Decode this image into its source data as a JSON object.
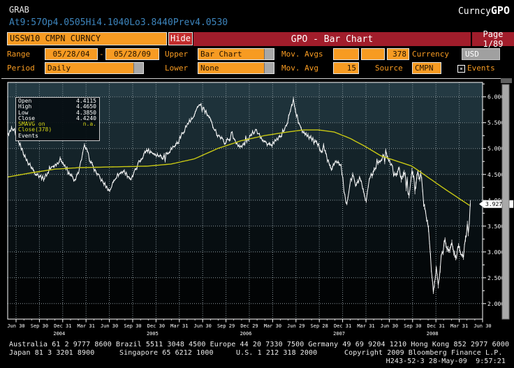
{
  "header": {
    "app_label": "GRAB",
    "function_name": "Curncy",
    "function_code": "GPO",
    "quote": {
      "at_label": "At",
      "at_value": "9:57",
      "op_label": "Op",
      "op_value": "4.0505",
      "hi_label": "Hi",
      "hi_value": "4.1040",
      "lo_label": "Lo",
      "lo_value": "3.8440",
      "prev_label": "Prev",
      "prev_value": "4.0530"
    }
  },
  "titlebar": {
    "security": "USSW10 CMPN CURNCY",
    "hide_label": "Hide",
    "title": "GPO - Bar Chart",
    "page": "Page 1/89"
  },
  "controls": {
    "range_label": "Range",
    "range_start": "05/28/04",
    "range_separator": "-",
    "range_end": "05/28/09",
    "upper_label": "Upper",
    "upper_value": "Bar Chart",
    "mov_avgs_label": "Mov. Avgs",
    "mov_avgs_1": "",
    "mov_avgs_2": "",
    "mov_avgs_3": "378",
    "currency_label": "Currency",
    "currency_value": "USD",
    "period_label": "Period",
    "period_value": "Daily",
    "lower_label": "Lower",
    "lower_value": "None",
    "mov_avg_label": "Mov. Avg",
    "mov_avg_value": "15",
    "source_label": "Source",
    "source_value": "CMPN",
    "events_label": "Events"
  },
  "legend": {
    "rows": [
      {
        "label": "Open",
        "value": "4.4115"
      },
      {
        "label": "High",
        "value": "4.4650"
      },
      {
        "label": "Low",
        "value": "4.3850"
      },
      {
        "label": "Close",
        "value": "4.4240"
      }
    ],
    "smavg_label": "SMAVG on Close(378)",
    "smavg_value": "n.a.",
    "events_label": "Events"
  },
  "chart_data": {
    "type": "line",
    "title": "GPO - Bar Chart (USSW10 CMPN CURNCY, daily bars with 378-period SMAVG)",
    "xlabel": "",
    "ylabel": "",
    "ylim": [
      1.7,
      6.28
    ],
    "grid": true,
    "legend_position": "top-left",
    "last_price": 3.927,
    "last_price_label": "3.9270",
    "y_axis": {
      "values": [
        6.0,
        5.5,
        5.0,
        4.5,
        4.0,
        3.5,
        3.0,
        2.5,
        2.0
      ],
      "labels": [
        "6.0000",
        "5.5000",
        "5.0000",
        "4.5000",
        "4.0000",
        "3.5000",
        "3.0000",
        "2.5000",
        "2.0000"
      ],
      "minor_tick_step": 0.25
    },
    "x_axis": {
      "unit": "months since 2004-05-28",
      "months_total": 61.08,
      "first_tick_month": 1.08,
      "tick_step_months": 3,
      "tick_labels": [
        "Jun 30",
        "Sep 30",
        "Dec 31",
        "Mar 31",
        "Jun 30",
        "Sep 30",
        "Dec 30",
        "Mar 31",
        "Jun 30",
        "Sep 29",
        "Dec 29",
        "Mar 30",
        "Jun 29",
        "Sep 28",
        "Dec 31",
        "Mar 31",
        "Jun 30",
        "Sep 30",
        "Dec 31",
        "Mar 31",
        "Jun 30"
      ],
      "years": [
        {
          "label": "2004",
          "tick": 2
        },
        {
          "label": "2005",
          "tick": 6
        },
        {
          "label": "2006",
          "tick": 10
        },
        {
          "label": "2007",
          "tick": 14
        },
        {
          "label": "2008",
          "tick": 18
        }
      ]
    },
    "series": [
      {
        "name": "USSW10 Close (daily bars)",
        "color": "#ffffff",
        "points": [
          [
            0,
            5.28
          ],
          [
            0.6,
            5.36
          ],
          [
            1.5,
            5.1
          ],
          [
            2.5,
            4.76
          ],
          [
            3.5,
            4.54
          ],
          [
            4.6,
            4.42
          ],
          [
            5.6,
            4.62
          ],
          [
            6.9,
            4.8
          ],
          [
            7.6,
            4.56
          ],
          [
            8.8,
            4.36
          ],
          [
            9.9,
            5.06
          ],
          [
            10.9,
            4.66
          ],
          [
            11.9,
            4.42
          ],
          [
            13.1,
            4.18
          ],
          [
            13.9,
            4.46
          ],
          [
            14.9,
            4.57
          ],
          [
            15.9,
            4.4
          ],
          [
            16.9,
            4.74
          ],
          [
            17.9,
            4.98
          ],
          [
            18.9,
            4.9
          ],
          [
            19.9,
            4.84
          ],
          [
            20.9,
            4.97
          ],
          [
            21.9,
            5.12
          ],
          [
            22.9,
            5.42
          ],
          [
            23.9,
            5.6
          ],
          [
            24.7,
            5.88
          ],
          [
            25.6,
            5.68
          ],
          [
            26.9,
            5.3
          ],
          [
            27.9,
            5.12
          ],
          [
            28.9,
            5.24
          ],
          [
            29.9,
            5.02
          ],
          [
            30.9,
            5.17
          ],
          [
            31.9,
            5.38
          ],
          [
            32.9,
            5.14
          ],
          [
            33.9,
            5.06
          ],
          [
            34.9,
            5.2
          ],
          [
            35.9,
            5.46
          ],
          [
            36.7,
            5.92
          ],
          [
            37.6,
            5.4
          ],
          [
            38.9,
            5.22
          ],
          [
            39.9,
            5.05
          ],
          [
            40.9,
            4.92
          ],
          [
            41.5,
            4.6
          ],
          [
            42,
            4.68
          ],
          [
            42.5,
            4.78
          ],
          [
            42.9,
            4.7
          ],
          [
            43.3,
            4.1
          ],
          [
            43.6,
            3.92
          ],
          [
            44,
            4.3
          ],
          [
            44.4,
            4.5
          ],
          [
            44.8,
            4.25
          ],
          [
            45.3,
            4.45
          ],
          [
            45.8,
            4.1
          ],
          [
            46.1,
            3.95
          ],
          [
            46.5,
            4.35
          ],
          [
            47,
            4.55
          ],
          [
            47.6,
            4.72
          ],
          [
            48.2,
            4.85
          ],
          [
            48.7,
            4.92
          ],
          [
            49.3,
            4.7
          ],
          [
            49.8,
            4.45
          ],
          [
            50.3,
            4.6
          ],
          [
            50.8,
            4.4
          ],
          [
            51.2,
            4.55
          ],
          [
            51.6,
            4.1
          ],
          [
            52,
            4.62
          ],
          [
            52.4,
            4.2
          ],
          [
            52.8,
            4.55
          ],
          [
            53.2,
            4.42
          ],
          [
            53.5,
            3.96
          ],
          [
            53.9,
            3.7
          ],
          [
            54.2,
            3.3
          ],
          [
            54.5,
            2.62
          ],
          [
            54.8,
            2.18
          ],
          [
            55.1,
            2.68
          ],
          [
            55.4,
            2.34
          ],
          [
            55.8,
            2.92
          ],
          [
            56.3,
            3.26
          ],
          [
            56.8,
            2.96
          ],
          [
            57.2,
            3.16
          ],
          [
            57.6,
            2.86
          ],
          [
            58,
            3.1
          ],
          [
            58.4,
            2.96
          ],
          [
            58.8,
            3.12
          ],
          [
            59.1,
            3.42
          ],
          [
            59.3,
            3.26
          ],
          [
            59.5,
            3.93
          ]
        ]
      },
      {
        "name": "SMAVG on Close(378)",
        "color": "#c8c814",
        "points": [
          [
            0,
            4.45
          ],
          [
            3,
            4.53
          ],
          [
            6,
            4.6
          ],
          [
            9,
            4.63
          ],
          [
            12,
            4.64
          ],
          [
            15,
            4.65
          ],
          [
            18,
            4.66
          ],
          [
            21,
            4.7
          ],
          [
            24,
            4.8
          ],
          [
            27,
            5.0
          ],
          [
            30,
            5.15
          ],
          [
            33,
            5.25
          ],
          [
            36,
            5.32
          ],
          [
            38,
            5.36
          ],
          [
            40,
            5.36
          ],
          [
            42,
            5.32
          ],
          [
            44,
            5.2
          ],
          [
            46,
            5.04
          ],
          [
            48,
            4.86
          ],
          [
            50,
            4.76
          ],
          [
            52,
            4.66
          ],
          [
            54,
            4.45
          ],
          [
            56,
            4.24
          ],
          [
            58,
            4.04
          ],
          [
            59.5,
            3.89
          ]
        ]
      }
    ]
  },
  "footer": {
    "line1": "Australia 61 2 9777 8600 Brazil 5511 3048 4500 Europe 44 20 7330 7500 Germany 49 69 9204 1210 Hong Kong 852 2977 6000",
    "japan": "Japan 81 3 3201 8900",
    "singapore": "Singapore 65 6212 1000",
    "us": "U.S. 1 212 318 2000",
    "copyright": "Copyright 2009 Bloomberg Finance L.P.",
    "line3": "H243-52-3 28-May-09  9:57:21"
  },
  "colors": {
    "amber": "#f79b22",
    "panel_red": "#a11d2b",
    "button_red": "#c22d2d",
    "quote_blue": "#3d85bd",
    "sma_yellow": "#c8c814",
    "bars_white": "#ffffff",
    "grid_gray": "#8c9aa0"
  }
}
